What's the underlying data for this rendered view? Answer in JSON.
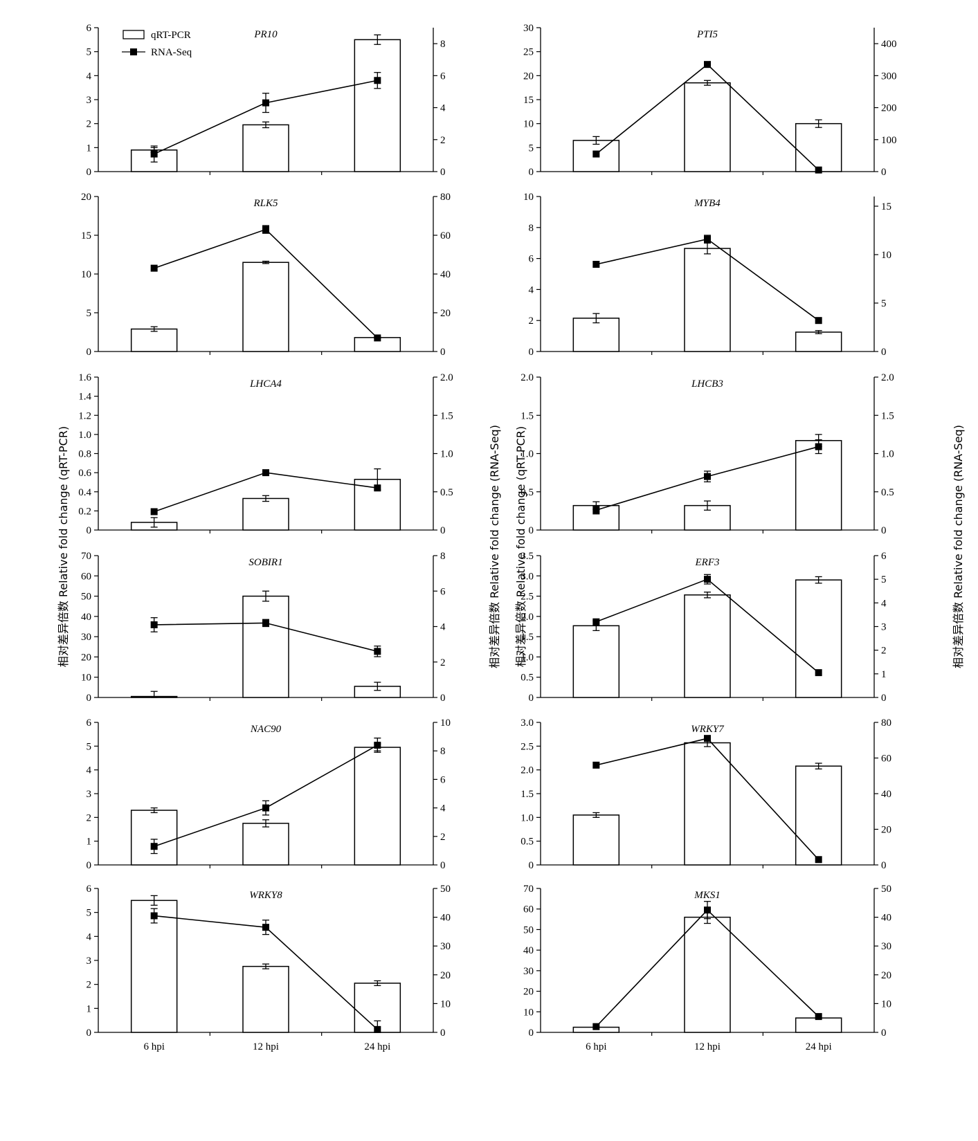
{
  "y_label_left": "相对差异倍数 Relative fold change (qRT-PCR)",
  "y_label_right": "相对差异倍数 Relative fold change (RNA-Seq)",
  "legend": {
    "bar": "qRT-PCR",
    "line": "RNA-Seq"
  },
  "colors": {
    "ink": "#000000",
    "bar_fill": "#ffffff"
  },
  "chart_data": [
    {
      "type": "bar",
      "title": "PR10",
      "categories": [
        "6 hpi",
        "12 hpi",
        "24 hpi"
      ],
      "series": [
        {
          "name": "qRT-PCR",
          "axis": "left",
          "values": [
            0.9,
            1.95,
            5.5
          ],
          "errors": [
            0.1,
            0.12,
            0.2
          ]
        },
        {
          "name": "RNA-Seq",
          "axis": "right",
          "type": "line",
          "values": [
            1.1,
            4.3,
            5.7
          ],
          "errors": [
            0.5,
            0.6,
            0.5
          ]
        }
      ],
      "ylim_left": [
        0,
        6
      ],
      "yticks_left": [
        0,
        1,
        2,
        3,
        4,
        5,
        6
      ],
      "ylim_right": [
        0,
        9
      ],
      "yticks_right": [
        0,
        2,
        4,
        6,
        8
      ]
    },
    {
      "type": "bar",
      "title": "PTI5",
      "categories": [
        "6 hpi",
        "12 hpi",
        "24 hpi"
      ],
      "series": [
        {
          "name": "qRT-PCR",
          "axis": "left",
          "values": [
            6.5,
            18.5,
            10
          ],
          "errors": [
            0.8,
            0.5,
            0.8
          ]
        },
        {
          "name": "RNA-Seq",
          "axis": "right",
          "type": "line",
          "values": [
            55,
            335,
            5
          ],
          "errors": [
            0,
            0,
            0
          ]
        }
      ],
      "ylim_left": [
        0,
        30
      ],
      "yticks_left": [
        0,
        5,
        10,
        15,
        20,
        25,
        30
      ],
      "ylim_right": [
        0,
        450
      ],
      "yticks_right": [
        0,
        100,
        200,
        300,
        400
      ]
    },
    {
      "type": "bar",
      "title": "RLK5",
      "categories": [
        "6 hpi",
        "12 hpi",
        "24 hpi"
      ],
      "series": [
        {
          "name": "qRT-PCR",
          "axis": "left",
          "values": [
            2.9,
            11.5,
            1.8
          ],
          "errors": [
            0.3,
            0.15,
            0.1
          ]
        },
        {
          "name": "RNA-Seq",
          "axis": "right",
          "type": "line",
          "values": [
            43,
            63,
            7
          ],
          "errors": [
            0,
            2,
            0
          ]
        }
      ],
      "ylim_left": [
        0,
        20
      ],
      "yticks_left": [
        0,
        5,
        10,
        15,
        20
      ],
      "ylim_right": [
        0,
        80
      ],
      "yticks_right": [
        0,
        20,
        40,
        60,
        80
      ]
    },
    {
      "type": "bar",
      "title": "MYB4",
      "categories": [
        "6 hpi",
        "12 hpi",
        "24 hpi"
      ],
      "series": [
        {
          "name": "qRT-PCR",
          "axis": "left",
          "values": [
            2.15,
            6.65,
            1.25
          ],
          "errors": [
            0.3,
            0.35,
            0.1
          ]
        },
        {
          "name": "RNA-Seq",
          "axis": "right",
          "type": "line",
          "values": [
            9,
            11.6,
            3.2
          ],
          "errors": [
            0,
            0.4,
            0
          ]
        }
      ],
      "ylim_left": [
        0,
        10
      ],
      "yticks_left": [
        0,
        2,
        4,
        6,
        8,
        10
      ],
      "ylim_right": [
        0,
        16
      ],
      "yticks_right": [
        0,
        5,
        10,
        15
      ]
    },
    {
      "type": "bar",
      "title": "LHCA4",
      "categories": [
        "6 hpi",
        "12 hpi",
        "24 hpi"
      ],
      "series": [
        {
          "name": "qRT-PCR",
          "axis": "left",
          "values": [
            0.08,
            0.33,
            0.53
          ],
          "errors": [
            0.05,
            0.03,
            0.11
          ]
        },
        {
          "name": "RNA-Seq",
          "axis": "right",
          "type": "line",
          "values": [
            0.24,
            0.75,
            0.55
          ],
          "errors": [
            0,
            0,
            0
          ]
        }
      ],
      "ylim_left": [
        0,
        1.6
      ],
      "yticks_left": [
        "0",
        "0.2",
        "0.4",
        "0.6",
        "0.8",
        "1.0",
        "1.2",
        "1.4",
        "1.6"
      ],
      "ylim_right": [
        0,
        2
      ],
      "yticks_right": [
        "0",
        "0.5",
        "1.0",
        "1.5",
        "2.0"
      ]
    },
    {
      "type": "bar",
      "title": "LHCB3",
      "categories": [
        "6 hpi",
        "12 hpi",
        "24 hpi"
      ],
      "series": [
        {
          "name": "qRT-PCR",
          "axis": "left",
          "values": [
            0.32,
            0.32,
            1.17
          ],
          "errors": [
            0.05,
            0.06,
            0.08
          ]
        },
        {
          "name": "RNA-Seq",
          "axis": "right",
          "type": "line",
          "values": [
            0.26,
            0.7,
            1.09
          ],
          "errors": [
            0.05,
            0.07,
            0.09
          ]
        }
      ],
      "ylim_left": [
        0,
        2
      ],
      "yticks_left": [
        "0",
        "0.5",
        "1.0",
        "1.5",
        "2.0"
      ],
      "ylim_right": [
        0,
        2
      ],
      "yticks_right": [
        "0",
        "0.5",
        "1.0",
        "1.5",
        "2.0"
      ]
    },
    {
      "type": "bar",
      "title": "SOBIR1",
      "categories": [
        "6 hpi",
        "12 hpi",
        "24 hpi"
      ],
      "series": [
        {
          "name": "qRT-PCR",
          "axis": "left",
          "values": [
            0.5,
            50,
            5.5
          ],
          "errors": [
            2.5,
            2.5,
            2
          ]
        },
        {
          "name": "RNA-Seq",
          "axis": "right",
          "type": "line",
          "values": [
            4.1,
            4.2,
            2.6
          ],
          "errors": [
            0.4,
            0.2,
            0.3
          ]
        }
      ],
      "ylim_left": [
        0,
        70
      ],
      "yticks_left": [
        0,
        10,
        20,
        30,
        40,
        50,
        60,
        70
      ],
      "ylim_right": [
        0,
        8
      ],
      "yticks_right": [
        0,
        2,
        4,
        6,
        8
      ]
    },
    {
      "type": "bar",
      "title": "ERF3",
      "categories": [
        "6 hpi",
        "12 hpi",
        "24 hpi"
      ],
      "series": [
        {
          "name": "qRT-PCR",
          "axis": "left",
          "values": [
            1.77,
            2.53,
            2.9
          ],
          "errors": [
            0.12,
            0.07,
            0.08
          ]
        },
        {
          "name": "RNA-Seq",
          "axis": "right",
          "type": "line",
          "values": [
            3.2,
            5.0,
            1.05
          ],
          "errors": [
            0,
            0.2,
            0
          ]
        }
      ],
      "ylim_left": [
        0,
        3.5
      ],
      "yticks_left": [
        "0",
        "0.5",
        "1.0",
        "1.5",
        "2.0",
        "2.5",
        "3.0",
        "3.5"
      ],
      "ylim_right": [
        0,
        6
      ],
      "yticks_right": [
        0,
        1,
        2,
        3,
        4,
        5,
        6
      ]
    },
    {
      "type": "bar",
      "title": "NAC90",
      "categories": [
        "6 hpi",
        "12 hpi",
        "24 hpi"
      ],
      "series": [
        {
          "name": "qRT-PCR",
          "axis": "left",
          "values": [
            2.3,
            1.75,
            4.95
          ],
          "errors": [
            0.1,
            0.15,
            0.15
          ]
        },
        {
          "name": "RNA-Seq",
          "axis": "right",
          "type": "line",
          "values": [
            1.3,
            4.0,
            8.4
          ],
          "errors": [
            0.5,
            0.5,
            0.5
          ]
        }
      ],
      "ylim_left": [
        0,
        6
      ],
      "yticks_left": [
        0,
        1,
        2,
        3,
        4,
        5,
        6
      ],
      "ylim_right": [
        0,
        10
      ],
      "yticks_right": [
        0,
        2,
        4,
        6,
        8,
        10
      ]
    },
    {
      "type": "bar",
      "title": "WRKY7",
      "categories": [
        "6 hpi",
        "12 hpi",
        "24 hpi"
      ],
      "series": [
        {
          "name": "qRT-PCR",
          "axis": "left",
          "values": [
            1.05,
            2.57,
            2.08
          ],
          "errors": [
            0.05,
            0.08,
            0.06
          ]
        },
        {
          "name": "RNA-Seq",
          "axis": "right",
          "type": "line",
          "values": [
            56,
            71,
            3
          ],
          "errors": [
            0,
            0,
            0
          ]
        }
      ],
      "ylim_left": [
        0,
        3
      ],
      "yticks_left": [
        "0",
        "0.5",
        "1.0",
        "1.5",
        "2.0",
        "2.5",
        "3.0"
      ],
      "ylim_right": [
        0,
        80
      ],
      "yticks_right": [
        0,
        20,
        40,
        60,
        80
      ]
    },
    {
      "type": "bar",
      "title": "WRKY8",
      "categories": [
        "6 hpi",
        "12 hpi",
        "24 hpi"
      ],
      "series": [
        {
          "name": "qRT-PCR",
          "axis": "left",
          "values": [
            5.5,
            2.75,
            2.05
          ],
          "errors": [
            0.2,
            0.1,
            0.1
          ]
        },
        {
          "name": "RNA-Seq",
          "axis": "right",
          "type": "line",
          "values": [
            40.5,
            36.5,
            1
          ],
          "errors": [
            2.5,
            2.5,
            3
          ]
        }
      ],
      "ylim_left": [
        0,
        6
      ],
      "yticks_left": [
        0,
        1,
        2,
        3,
        4,
        5,
        6
      ],
      "ylim_right": [
        0,
        50
      ],
      "yticks_right": [
        0,
        10,
        20,
        30,
        40,
        50
      ]
    },
    {
      "type": "bar",
      "title": "MKS1",
      "categories": [
        "6 hpi",
        "12 hpi",
        "24 hpi"
      ],
      "series": [
        {
          "name": "qRT-PCR",
          "axis": "left",
          "values": [
            2.5,
            56,
            7
          ],
          "errors": [
            0,
            3,
            0
          ]
        },
        {
          "name": "RNA-Seq",
          "axis": "right",
          "type": "line",
          "values": [
            2,
            42.5,
            5.5
          ],
          "errors": [
            0,
            3,
            0
          ]
        }
      ],
      "ylim_left": [
        0,
        70
      ],
      "yticks_left": [
        0,
        10,
        20,
        30,
        40,
        50,
        60,
        70
      ],
      "ylim_right": [
        0,
        50
      ],
      "yticks_right": [
        0,
        10,
        20,
        30,
        40,
        50
      ]
    }
  ]
}
